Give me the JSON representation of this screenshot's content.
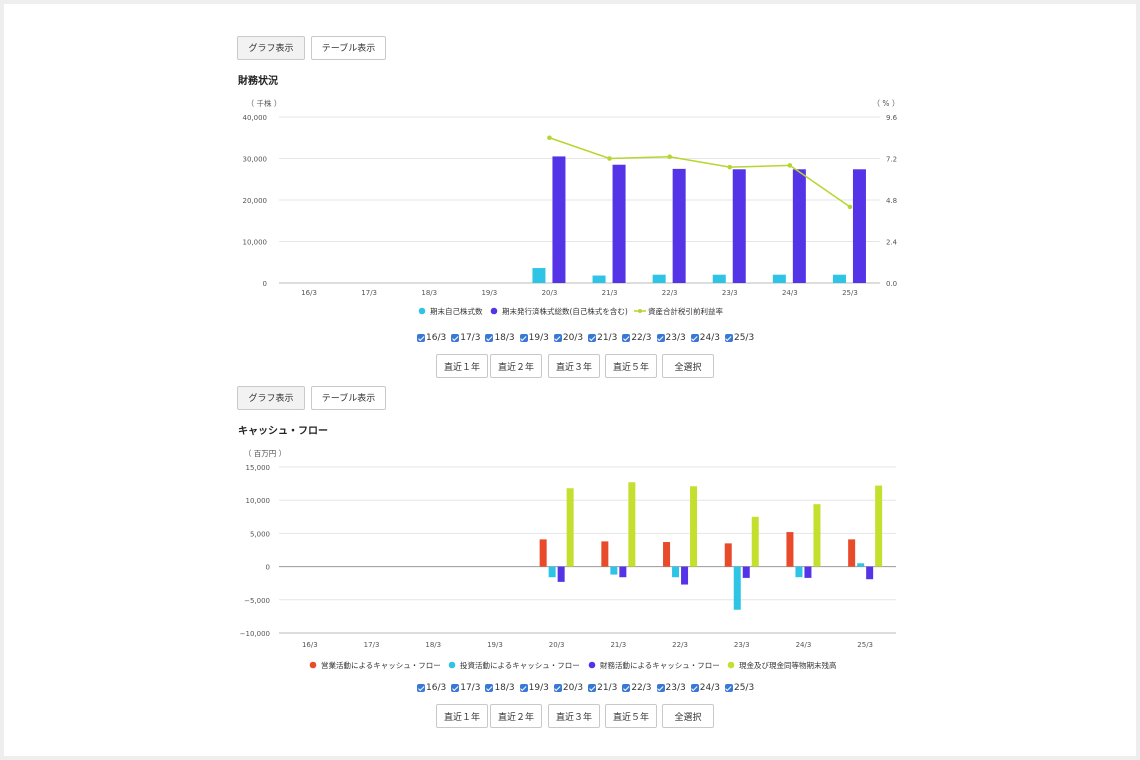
{
  "tabs": {
    "graph": "グラフ表示",
    "table": "テーブル表示"
  },
  "period_buttons": [
    "直近１年",
    "直近２年",
    "直近３年",
    "直近５年",
    "全選択"
  ],
  "years": [
    "16/3",
    "17/3",
    "18/3",
    "19/3",
    "20/3",
    "21/3",
    "22/3",
    "23/3",
    "24/3",
    "25/3"
  ],
  "section1": {
    "title": "財務状況"
  },
  "section2": {
    "title": "キャッシュ・フロー"
  },
  "chart_data": [
    {
      "type": "bar",
      "title": "財務状況",
      "ylabel": "（ 千株 ）",
      "y2label": "（ % ）",
      "categories": [
        "16/3",
        "17/3",
        "18/3",
        "19/3",
        "20/3",
        "21/3",
        "22/3",
        "23/3",
        "24/3",
        "25/3"
      ],
      "ylim": [
        0,
        40000
      ],
      "y2lim": [
        0,
        9.6
      ],
      "yticks": [
        "0",
        "10,000",
        "20,000",
        "30,000",
        "40,000"
      ],
      "y2ticks": [
        "0.0",
        "2.4",
        "4.8",
        "7.2",
        "9.6"
      ],
      "grid": true,
      "legend": "bottom",
      "series": [
        {
          "name": "期末自己株式数",
          "kind": "bar",
          "color": "#2ec4e6",
          "values": [
            null,
            null,
            null,
            null,
            3600,
            1800,
            2000,
            2000,
            2000,
            2000
          ]
        },
        {
          "name": "期末発行済株式総数(自己株式を含む)",
          "kind": "bar",
          "color": "#5533e6",
          "values": [
            null,
            null,
            null,
            null,
            30500,
            28500,
            27500,
            27400,
            27400,
            27400
          ]
        },
        {
          "name": "資産合計税引前利益率",
          "kind": "line",
          "axis": "right",
          "color": "#b5d62e",
          "values": [
            null,
            null,
            null,
            null,
            8.4,
            7.2,
            7.3,
            6.7,
            6.8,
            4.4
          ]
        }
      ]
    },
    {
      "type": "bar",
      "title": "キャッシュ・フロー",
      "ylabel": "（ 百万円 ）",
      "categories": [
        "16/3",
        "17/3",
        "18/3",
        "19/3",
        "20/3",
        "21/3",
        "22/3",
        "23/3",
        "24/3",
        "25/3"
      ],
      "ylim": [
        -10000,
        15000
      ],
      "yticks": [
        "−10,000",
        "−5,000",
        "0",
        "5,000",
        "10,000",
        "15,000"
      ],
      "grid": true,
      "legend": "bottom",
      "series": [
        {
          "name": "営業活動によるキャッシュ・フロー",
          "color": "#e84a2a",
          "values": [
            null,
            null,
            null,
            null,
            4100,
            3800,
            3700,
            3500,
            5200,
            4100
          ]
        },
        {
          "name": "投資活動によるキャッシュ・フロー",
          "color": "#2ec4e6",
          "values": [
            null,
            null,
            null,
            null,
            -1600,
            -1200,
            -1600,
            -6500,
            -1600,
            500
          ]
        },
        {
          "name": "財務活動によるキャッシュ・フロー",
          "color": "#5533e6",
          "values": [
            null,
            null,
            null,
            null,
            -2300,
            -1600,
            -2700,
            -1700,
            -1700,
            -1900
          ]
        },
        {
          "name": "現金及び現金同等物期末残高",
          "color": "#c5df2e",
          "values": [
            null,
            null,
            null,
            null,
            11800,
            12700,
            12100,
            7500,
            9400,
            12200
          ]
        }
      ]
    }
  ]
}
